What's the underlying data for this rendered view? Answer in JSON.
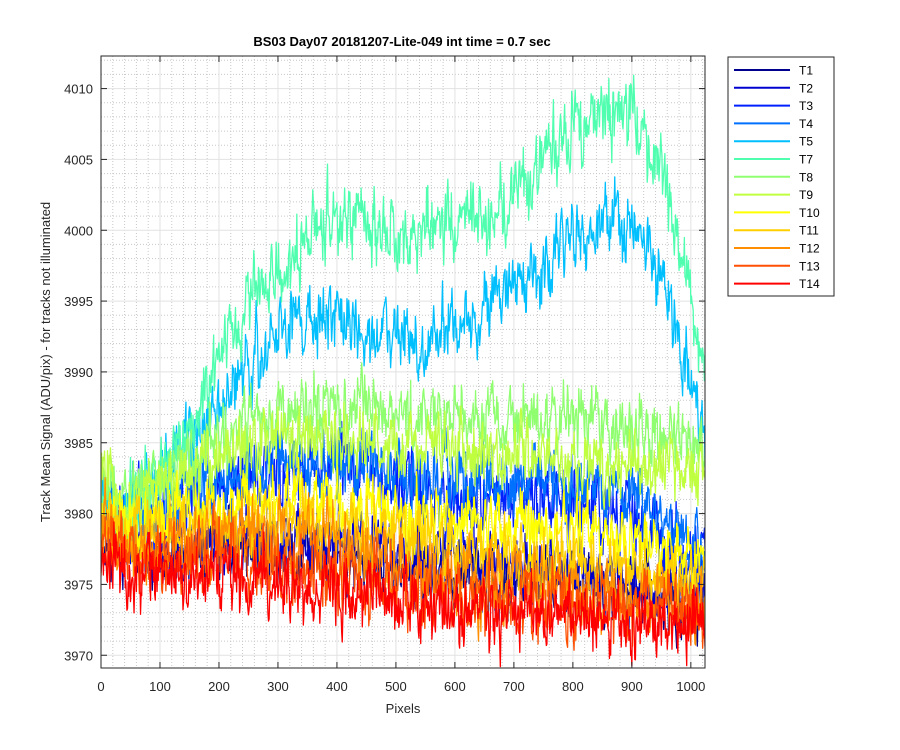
{
  "chart_data": {
    "type": "line",
    "title": "BS03 Day07 20181207-Lite-049 int time = 0.7 sec",
    "xlabel": "Pixels",
    "ylabel": "Track Mean Signal (ADU/pix) - for tracks not illuminated",
    "xlim": [
      0,
      1024
    ],
    "ylim": [
      3969.1,
      4012.3
    ],
    "x_ticks": [
      0,
      100,
      200,
      300,
      400,
      500,
      600,
      700,
      800,
      900,
      1000
    ],
    "y_ticks": [
      3970,
      3975,
      3980,
      3985,
      3990,
      3995,
      4000,
      4005,
      4010
    ],
    "grid": true,
    "minor_grid": true,
    "legend_position": "outside-right-top",
    "series": [
      {
        "name": "T1",
        "color": "#00008f",
        "noise": 1.4,
        "x": [
          0,
          50,
          200,
          400,
          600,
          800,
          1000,
          1024
        ],
        "y": [
          3978.5,
          3977,
          3977.5,
          3977,
          3975.5,
          3975,
          3973.5,
          3973
        ]
      },
      {
        "name": "T2",
        "color": "#0000cf",
        "noise": 1.4,
        "x": [
          0,
          50,
          200,
          400,
          600,
          800,
          1000,
          1024
        ],
        "y": [
          3979,
          3977.5,
          3978,
          3978,
          3977,
          3976,
          3974.5,
          3974
        ]
      },
      {
        "name": "T3",
        "color": "#0020ff",
        "noise": 1.5,
        "x": [
          0,
          50,
          150,
          300,
          400,
          500,
          600,
          700,
          800,
          900,
          1000,
          1024
        ],
        "y": [
          3980,
          3979,
          3981,
          3983,
          3983.5,
          3982.5,
          3981,
          3981,
          3980.5,
          3979.5,
          3977,
          3976
        ]
      },
      {
        "name": "T4",
        "color": "#0070ff",
        "noise": 1.4,
        "x": [
          0,
          50,
          150,
          300,
          400,
          500,
          600,
          700,
          800,
          900,
          1000,
          1024
        ],
        "y": [
          3980.5,
          3979.5,
          3981.5,
          3983.5,
          3983.5,
          3983,
          3982,
          3982.5,
          3982,
          3981,
          3978.5,
          3978
        ]
      },
      {
        "name": "T5",
        "color": "#00bfff",
        "noise": 1.5,
        "x": [
          0,
          40,
          100,
          150,
          200,
          250,
          300,
          350,
          400,
          450,
          500,
          550,
          600,
          650,
          700,
          750,
          800,
          850,
          880,
          900,
          930,
          960,
          990,
          1010,
          1024
        ],
        "y": [
          3981,
          3979.5,
          3982,
          3985,
          3987.5,
          3990.5,
          3993,
          3993.5,
          3993.5,
          3993,
          3992,
          3991.5,
          3993,
          3994.5,
          3996,
          3997.5,
          3999.5,
          4000,
          4000.5,
          4000,
          3998.5,
          3995,
          3991,
          3988,
          3985
        ]
      },
      {
        "name": "T7",
        "color": "#4fffaf",
        "noise": 1.6,
        "x": [
          0,
          40,
          100,
          150,
          200,
          250,
          300,
          350,
          400,
          450,
          500,
          550,
          600,
          650,
          700,
          750,
          800,
          850,
          880,
          900,
          930,
          960,
          990,
          1010,
          1024
        ],
        "y": [
          3981,
          3980,
          3982.5,
          3986.5,
          3991,
          3995,
          3997.5,
          3999.5,
          4000.5,
          4000,
          3999.5,
          4000,
          4000.5,
          4001,
          4002.5,
          4005,
          4007,
          4008.5,
          4009.5,
          4009,
          4006,
          4003,
          3998,
          3993,
          3990
        ]
      },
      {
        "name": "T8",
        "color": "#8fff70",
        "noise": 1.4,
        "x": [
          0,
          40,
          100,
          200,
          300,
          400,
          500,
          600,
          700,
          800,
          900,
          1000,
          1024
        ],
        "y": [
          3982,
          3981,
          3982.5,
          3985.5,
          3987,
          3987.5,
          3987,
          3987,
          3986.5,
          3986.5,
          3986,
          3985,
          3984
        ]
      },
      {
        "name": "T9",
        "color": "#bfff3f",
        "noise": 1.4,
        "x": [
          0,
          40,
          100,
          200,
          300,
          400,
          500,
          600,
          700,
          800,
          900,
          1000,
          1024
        ],
        "y": [
          3982.5,
          3981,
          3982,
          3984,
          3985,
          3985,
          3984.5,
          3984.5,
          3984,
          3983.5,
          3983.5,
          3983,
          3982.5
        ]
      },
      {
        "name": "T10",
        "color": "#ffff00",
        "noise": 1.4,
        "x": [
          0,
          50,
          200,
          300,
          400,
          500,
          600,
          700,
          800,
          900,
          1000,
          1024
        ],
        "y": [
          3980,
          3979,
          3980.5,
          3981,
          3980.5,
          3980,
          3979.5,
          3979,
          3979,
          3978,
          3976.5,
          3976
        ]
      },
      {
        "name": "T11",
        "color": "#ffcf00",
        "noise": 1.4,
        "x": [
          0,
          50,
          200,
          300,
          400,
          500,
          600,
          700,
          800,
          900,
          1000,
          1024
        ],
        "y": [
          3979.5,
          3978.5,
          3979.5,
          3979.5,
          3979,
          3978.5,
          3977.5,
          3977,
          3976.5,
          3976,
          3975,
          3974.5
        ]
      },
      {
        "name": "T12",
        "color": "#ff8f00",
        "noise": 1.5,
        "x": [
          0,
          50,
          200,
          300,
          400,
          500,
          600,
          700,
          800,
          900,
          1000,
          1024
        ],
        "y": [
          3979,
          3977.5,
          3978.5,
          3978.5,
          3977.5,
          3976.5,
          3975.5,
          3975,
          3974.5,
          3974,
          3973.5,
          3973
        ]
      },
      {
        "name": "T13",
        "color": "#ff4f00",
        "noise": 1.5,
        "x": [
          0,
          50,
          200,
          300,
          400,
          500,
          600,
          700,
          800,
          900,
          1000,
          1024
        ],
        "y": [
          3978,
          3976.5,
          3977,
          3976.5,
          3976,
          3975,
          3974.5,
          3974,
          3973.5,
          3973.5,
          3973,
          3972.5
        ]
      },
      {
        "name": "T14",
        "color": "#ff0000",
        "noise": 1.5,
        "x": [
          0,
          50,
          200,
          300,
          400,
          500,
          600,
          700,
          800,
          900,
          1000,
          1024
        ],
        "y": [
          3977,
          3975.5,
          3975.5,
          3975,
          3974.5,
          3974,
          3973.5,
          3973,
          3973,
          3972.5,
          3972.5,
          3972
        ]
      }
    ]
  }
}
